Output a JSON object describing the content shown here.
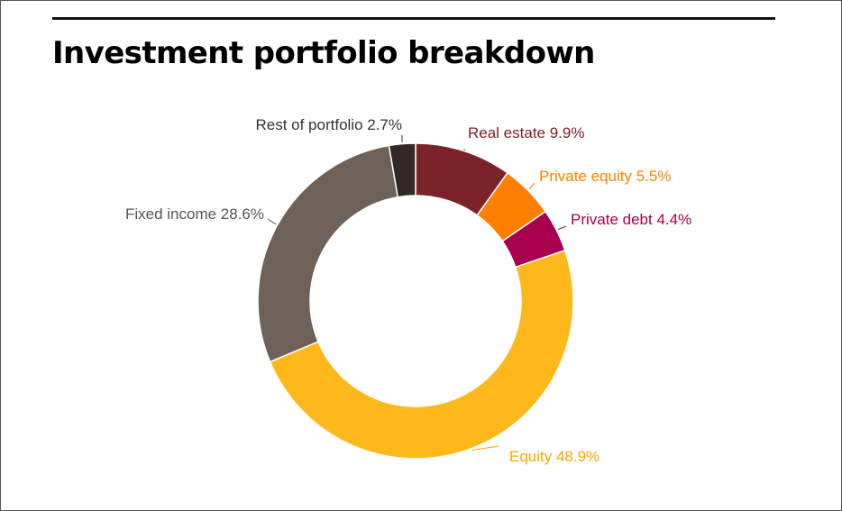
{
  "title": "Investment portfolio breakdown",
  "chart_data": {
    "type": "pie",
    "variant": "donut",
    "categories": [
      "Real estate",
      "Private equity",
      "Private debt",
      "Equity",
      "Fixed income",
      "Rest of portfolio"
    ],
    "values": [
      9.9,
      5.5,
      4.4,
      48.9,
      28.6,
      2.7
    ],
    "unit": "%",
    "labels": [
      "Real estate 9.9%",
      "Private equity 5.5%",
      "Private debt 4.4%",
      "Equity 48.9%",
      "Fixed income 28.6%",
      "Rest of portfolio 2.7%"
    ],
    "colors": [
      "#7a2329",
      "#ff8000",
      "#a8004f",
      "#ffb81c",
      "#6e6157",
      "#332828"
    ],
    "label_colors": [
      "#7a2329",
      "#ff8000",
      "#a8004f",
      "#ffa600",
      "#555555",
      "#333333"
    ],
    "start": "12 o'clock",
    "direction": "clockwise",
    "legend": "none (direct labels)"
  }
}
